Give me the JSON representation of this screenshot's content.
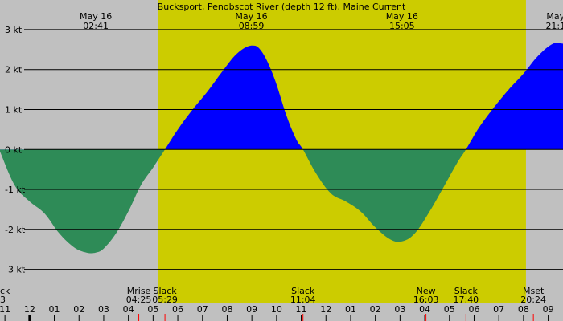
{
  "chart_data": {
    "type": "area",
    "title": "Bucksport, Penobscot River (depth 12 ft), Maine Current",
    "ylim": [
      -3.35,
      3.3
    ],
    "y_ticks": [
      {
        "value": 3,
        "label": "3 kt"
      },
      {
        "value": 2,
        "label": "2 kt"
      },
      {
        "value": 1,
        "label": "1 kt"
      },
      {
        "value": 0,
        "label": "0 kt"
      },
      {
        "value": -1,
        "label": "-1 kt"
      },
      {
        "value": -2,
        "label": "-2 kt"
      },
      {
        "value": -3,
        "label": "-3 kt"
      }
    ],
    "x_range_hours": [
      -1.2,
      21.6
    ],
    "daylight": {
      "start": 5.2,
      "end": 20.1
    },
    "x_hour_labels": [
      {
        "hour": -1,
        "label": "11"
      },
      {
        "hour": 0,
        "label": "12"
      },
      {
        "hour": 1,
        "label": "01"
      },
      {
        "hour": 2,
        "label": "02"
      },
      {
        "hour": 3,
        "label": "03"
      },
      {
        "hour": 4,
        "label": "04"
      },
      {
        "hour": 5,
        "label": "05"
      },
      {
        "hour": 6,
        "label": "06"
      },
      {
        "hour": 7,
        "label": "07"
      },
      {
        "hour": 8,
        "label": "08"
      },
      {
        "hour": 9,
        "label": "09"
      },
      {
        "hour": 10,
        "label": "10"
      },
      {
        "hour": 11,
        "label": "11"
      },
      {
        "hour": 12,
        "label": "12"
      },
      {
        "hour": 13,
        "label": "01"
      },
      {
        "hour": 14,
        "label": "02"
      },
      {
        "hour": 15,
        "label": "03"
      },
      {
        "hour": 16,
        "label": "04"
      },
      {
        "hour": 17,
        "label": "05"
      },
      {
        "hour": 18,
        "label": "06"
      },
      {
        "hour": 19,
        "label": "07"
      },
      {
        "hour": 20,
        "label": "08"
      },
      {
        "hour": 21,
        "label": "09"
      }
    ],
    "top_annotations": [
      {
        "hour": 2.68,
        "line1": "May 16",
        "line2": "02:41"
      },
      {
        "hour": 8.98,
        "line1": "May 16",
        "line2": "08:59"
      },
      {
        "hour": 15.08,
        "line1": "May 16",
        "line2": "15:05"
      },
      {
        "hour": 21.3,
        "line1": "May",
        "line2": "21:1"
      }
    ],
    "bottom_events": [
      {
        "hour": -1.2,
        "line1": "ck",
        "line2": "3",
        "anchor": "start"
      },
      {
        "hour": 4.42,
        "line1": "Mrise",
        "line2": "04:25",
        "anchor": "middle"
      },
      {
        "hour": 5.48,
        "line1": "Slack",
        "line2": "05:29",
        "anchor": "middle"
      },
      {
        "hour": 11.07,
        "line1": "Slack",
        "line2": "11:04",
        "anchor": "middle"
      },
      {
        "hour": 16.05,
        "line1": "New",
        "line2": "16:03",
        "anchor": "middle"
      },
      {
        "hour": 17.67,
        "line1": "Slack",
        "line2": "17:40",
        "anchor": "middle"
      },
      {
        "hour": 20.4,
        "line1": "Mset",
        "line2": "20:24",
        "anchor": "middle"
      }
    ],
    "current_series": {
      "x_hours": [
        -1.2,
        -0.6,
        0.0,
        0.6,
        1.2,
        1.8,
        2.3,
        2.68,
        3.0,
        3.5,
        4.0,
        4.5,
        5.0,
        5.48,
        6.0,
        6.6,
        7.2,
        7.8,
        8.4,
        8.98,
        9.4,
        9.9,
        10.4,
        10.8,
        11.07,
        11.6,
        12.2,
        12.8,
        13.4,
        14.0,
        14.6,
        15.08,
        15.6,
        16.2,
        16.8,
        17.3,
        17.67,
        18.2,
        18.8,
        19.4,
        20.0,
        20.6,
        21.2,
        21.6
      ],
      "y_knots": [
        -0.05,
        -0.9,
        -1.3,
        -1.6,
        -2.1,
        -2.45,
        -2.58,
        -2.58,
        -2.48,
        -2.1,
        -1.55,
        -0.9,
        -0.45,
        0.0,
        0.5,
        1.0,
        1.45,
        1.95,
        2.4,
        2.6,
        2.45,
        1.8,
        0.85,
        0.25,
        0.0,
        -0.6,
        -1.1,
        -1.3,
        -1.55,
        -1.95,
        -2.25,
        -2.3,
        -2.1,
        -1.55,
        -0.9,
        -0.35,
        0.0,
        0.55,
        1.05,
        1.5,
        1.9,
        2.35,
        2.65,
        2.65
      ]
    },
    "colors": {
      "night_bg": "#c0c0c0",
      "day_bg": "#cccc00",
      "flood": "#0000ff",
      "ebb": "#2e8b57",
      "grid": "#000000",
      "event_tick": "#ff0000"
    }
  }
}
